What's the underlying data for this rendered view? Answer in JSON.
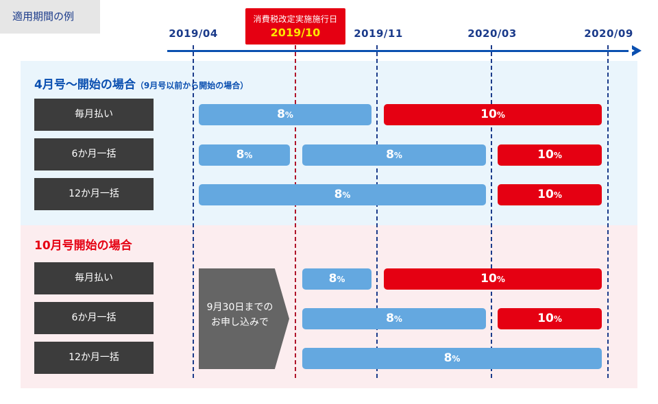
{
  "tag": "適用期間の例",
  "timeline": {
    "dates": [
      "2019/04",
      "2019/11",
      "2020/03",
      "2020/09"
    ],
    "tax_change": {
      "label": "消費税改定実施施行日",
      "date": "2019/10"
    }
  },
  "section_april": {
    "title": "4月号～開始の場合",
    "subtitle": "（9月号以前から開始の場合）",
    "rows": [
      {
        "label": "毎月払い",
        "bars": [
          "8",
          "10"
        ]
      },
      {
        "label": "6か月一括",
        "bars": [
          "8",
          "8",
          "10"
        ]
      },
      {
        "label": "12か月一括",
        "bars": [
          "8",
          "10"
        ]
      }
    ]
  },
  "section_october": {
    "title": "10月号開始の場合",
    "rows": [
      {
        "label": "毎月払い",
        "bars": [
          "8",
          "10"
        ]
      },
      {
        "label": "6か月一括",
        "bars": [
          "8",
          "10"
        ]
      },
      {
        "label": "12か月一括",
        "bars": [
          "8"
        ]
      }
    ],
    "note_line1": "9月30日までの",
    "note_line2": "お申し込みで"
  },
  "unit": "%",
  "colors": {
    "rate_8": "#64a8e0",
    "rate_10": "#e50012",
    "axis": "#0a4fb0",
    "label_bg": "#3c3c3c"
  }
}
